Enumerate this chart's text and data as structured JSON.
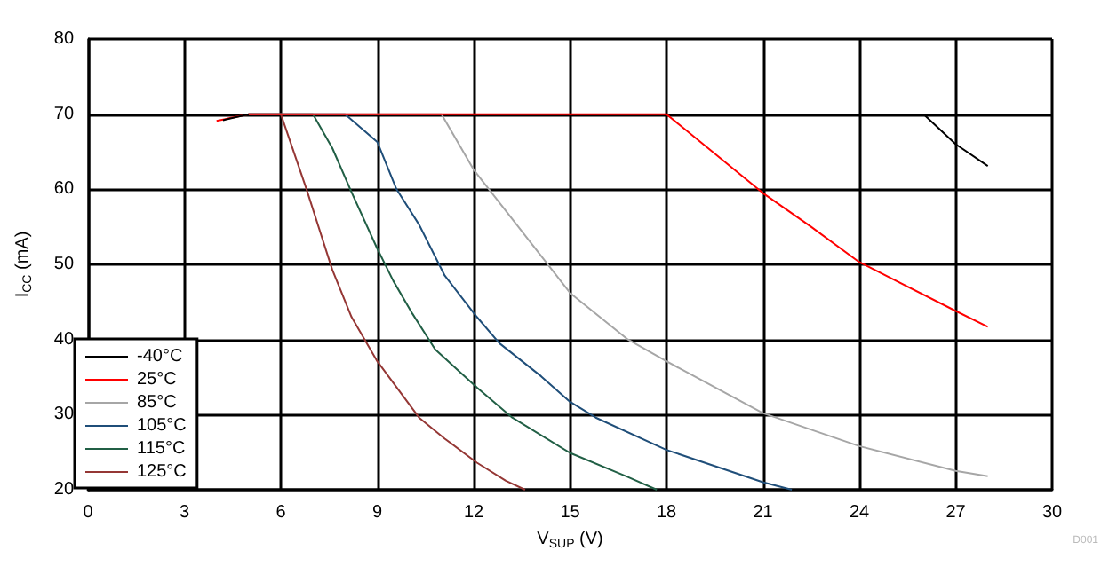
{
  "chart_data": {
    "type": "line",
    "xlabel": "V$_{SUP}$ (V)",
    "ylabel": "I$_{CC}$ (mA)",
    "xlim": [
      0,
      30
    ],
    "xticks": [
      0,
      3,
      6,
      9,
      12,
      15,
      18,
      21,
      24,
      27,
      30
    ],
    "ylim": [
      20,
      80
    ],
    "yticks": [
      20,
      30,
      40,
      50,
      60,
      70,
      80
    ],
    "grid": true,
    "legend": "bottom left",
    "marker": "none",
    "line_style": "solid",
    "annotations": [
      "D001"
    ],
    "series": [
      {
        "name": "-40°C",
        "color": "#000000",
        "x": [
          4.2,
          5,
          15,
          26,
          27,
          28
        ],
        "values": [
          69.2,
          70,
          null,
          70,
          66,
          63.1
        ]
      },
      {
        "name": "25°C",
        "color": "#ff0000",
        "x": [
          4,
          5,
          18,
          21,
          22.5,
          24,
          27,
          28
        ],
        "values": [
          69.1,
          70,
          70,
          59.5,
          55,
          50.3,
          43.8,
          41.7
        ]
      },
      {
        "name": "85°C",
        "color": "#a6a6a6",
        "x": [
          5,
          11,
          12,
          15,
          16.8,
          18,
          21,
          24,
          27,
          28
        ],
        "values": [
          70,
          70,
          62.6,
          46.2,
          40,
          37.1,
          30.2,
          25.8,
          22.5,
          21.8
        ]
      },
      {
        "name": "105°C",
        "color": "#1f4e79",
        "x": [
          5,
          8,
          9,
          9.6,
          10.3,
          11.1,
          12.1,
          12.8,
          14.1,
          15,
          15.8,
          18,
          21,
          21.9
        ],
        "values": [
          70,
          70,
          66.3,
          60,
          55.3,
          48.5,
          43,
          39.5,
          35.1,
          31.7,
          29.6,
          25.3,
          21,
          20
        ]
      },
      {
        "name": "115°C",
        "color": "#215f45",
        "x": [
          5,
          7,
          7.6,
          8.2,
          9,
          9.5,
          10.1,
          10.8,
          12.1,
          13.2,
          15,
          16.8,
          17.7
        ],
        "values": [
          70,
          70,
          65.5,
          59.6,
          52.1,
          47.8,
          43.4,
          38.7,
          33.6,
          29.6,
          24.9,
          21.7,
          20
        ]
      },
      {
        "name": "125°C",
        "color": "#953735",
        "x": [
          5,
          6,
          6.8,
          7.6,
          8.2,
          9,
          10.3,
          11.1,
          12.1,
          13,
          13.6
        ],
        "values": [
          70,
          70,
          60,
          49.3,
          43,
          37.1,
          29.6,
          26.8,
          23.6,
          21.2,
          20
        ]
      }
    ]
  }
}
